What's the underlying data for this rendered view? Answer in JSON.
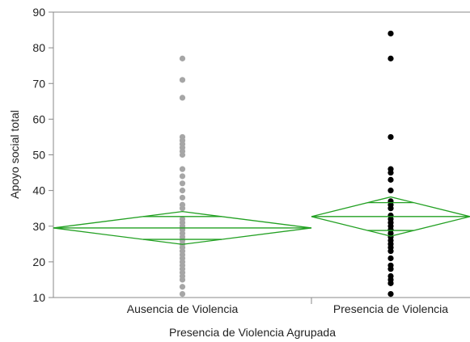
{
  "chart_data": {
    "type": "scatter",
    "subtype": "means-diamonds",
    "xlabel": "Presencia de Violencia Agrupada",
    "ylabel": "Apoyo social total",
    "categories": [
      "Ausencia de Violencia",
      "Presencia de Violencia"
    ],
    "ylim": [
      10,
      90
    ],
    "yticks": [
      10,
      20,
      30,
      40,
      50,
      60,
      70,
      80,
      90
    ],
    "grid": false,
    "series": [
      {
        "category": "Ausencia de Violencia",
        "point_color": "#a6a6a6",
        "values": [
          77,
          71,
          66,
          55,
          54,
          53,
          52,
          51,
          50,
          46,
          44,
          42,
          40,
          38,
          36,
          35,
          32,
          31,
          30,
          29,
          28,
          27,
          26,
          25,
          24,
          23,
          22,
          21,
          20,
          19,
          18,
          17,
          16,
          15,
          13,
          11
        ],
        "mean": 29.5,
        "ci": [
          24.9,
          34.1
        ],
        "overlap": [
          26.3,
          32.7
        ]
      },
      {
        "category": "Presencia de Violencia",
        "point_color": "#000000",
        "values": [
          84,
          77,
          55,
          46,
          45,
          43,
          40,
          37,
          36,
          35,
          33,
          32,
          31,
          30,
          29,
          28,
          27,
          26,
          25,
          24,
          23,
          21,
          19,
          18,
          16,
          15,
          14,
          11
        ],
        "mean": 32.7,
        "ci": [
          27.2,
          38.2
        ],
        "overlap": [
          28.8,
          36.6
        ]
      }
    ],
    "diamond_color": "#22a022"
  }
}
